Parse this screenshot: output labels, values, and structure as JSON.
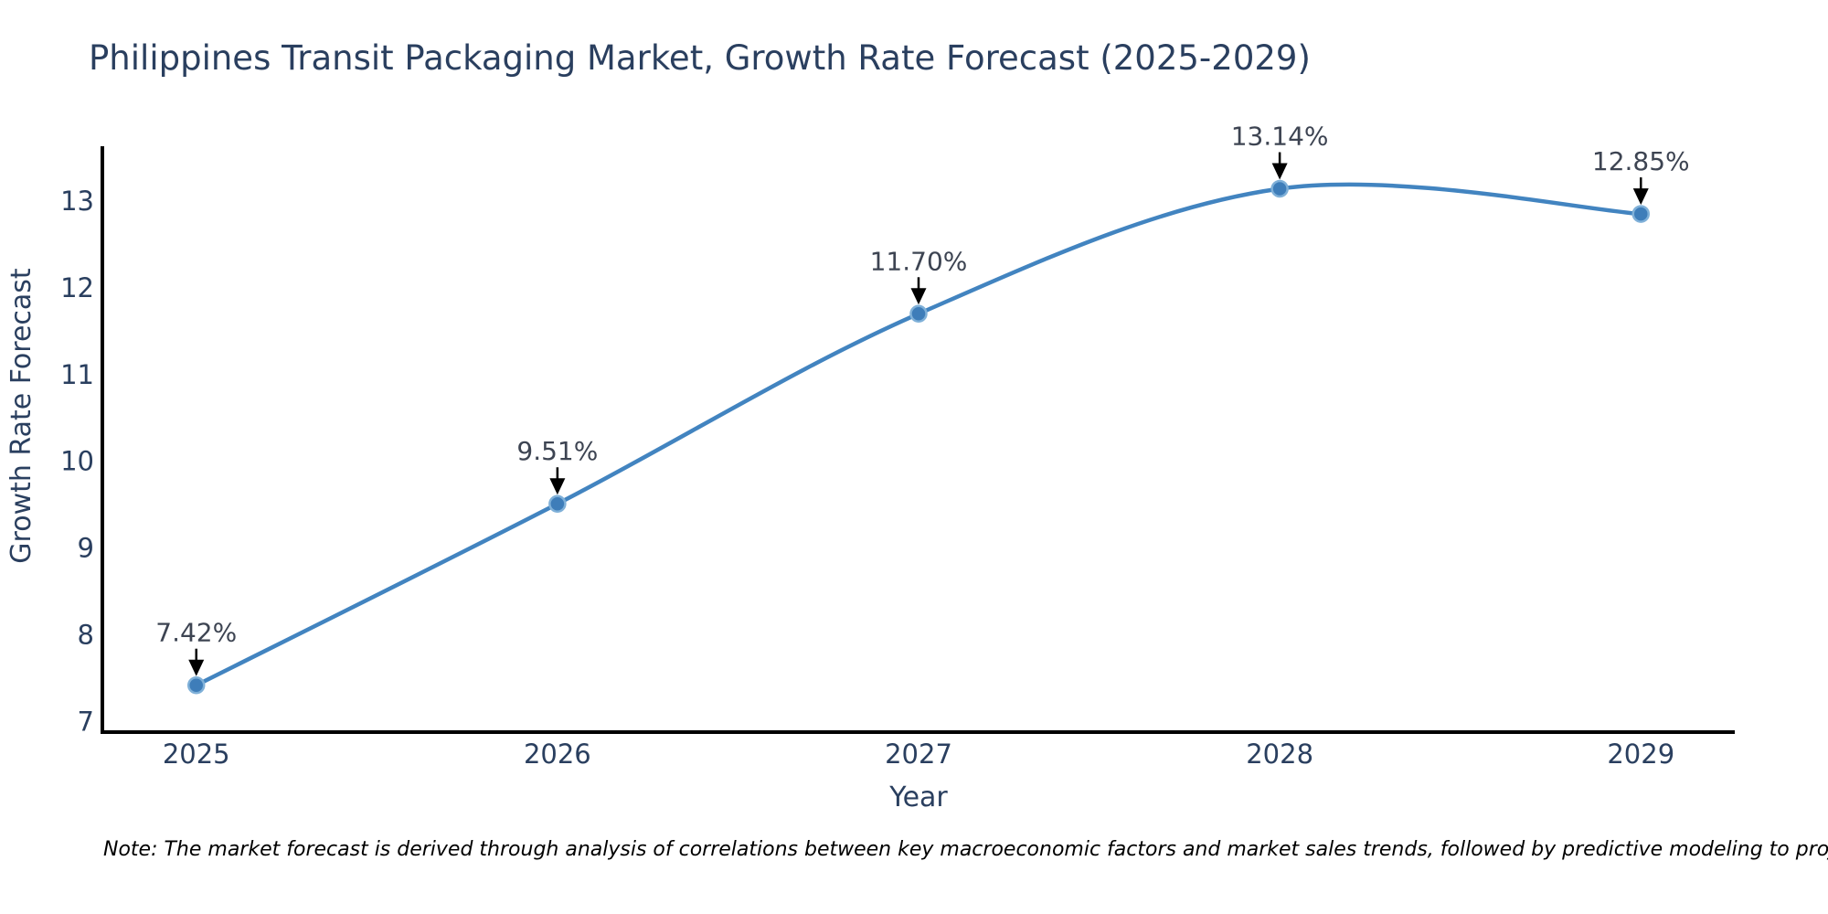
{
  "title": {
    "text": "Philippines Transit Packaging Market, Growth Rate Forecast (2025-2029)",
    "color": "#2a3f5f"
  },
  "note": {
    "text": "Note: The market forecast is derived through analysis of correlations between key macroeconomic factors and market sales trends, followed by predictive modeling to project future sales."
  },
  "chart_data": {
    "type": "line",
    "title": "Philippines Transit Packaging Market, Growth Rate Forecast (2025-2029)",
    "xlabel": "Year",
    "ylabel": "Growth Rate Forecast",
    "x": [
      2025,
      2026,
      2027,
      2028,
      2029
    ],
    "series": [
      {
        "name": "Growth Rate Forecast",
        "values": [
          7.42,
          9.51,
          11.7,
          13.14,
          12.85
        ]
      }
    ],
    "point_labels": [
      "7.42%",
      "9.51%",
      "11.70%",
      "13.14%",
      "12.85%"
    ],
    "x_tick_labels": [
      "2025",
      "2026",
      "2027",
      "2028",
      "2029"
    ],
    "y_ticks": [
      7,
      8,
      9,
      10,
      11,
      12,
      13
    ],
    "xlim": [
      2024.74,
      2029.26
    ],
    "ylim": [
      6.88,
      13.63
    ],
    "grid": false,
    "legend_position": "none",
    "line_shape": "spline",
    "colors": {
      "line": "#4284c0",
      "marker_fill": "#3e7db9",
      "marker_outline": "#7fb0d8",
      "axis_line": "#000000",
      "tick_label": "#2a3f5f",
      "axis_title": "#2a3f5f",
      "annotation_text": "#3d4452",
      "arrow": "#000000"
    }
  }
}
